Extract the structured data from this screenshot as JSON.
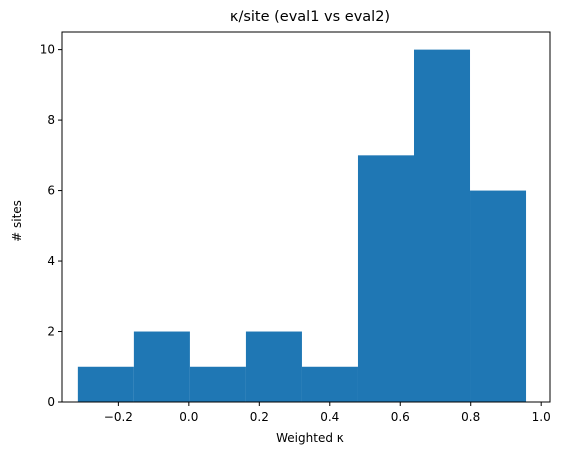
{
  "chart_data": {
    "type": "bar",
    "title": "κ/site (eval1 vs eval2)",
    "xlabel": "Weighted κ",
    "ylabel": "# sites",
    "xlim": [
      -0.36,
      1.025
    ],
    "ylim": [
      0,
      10.5
    ],
    "x_ticks": [
      -0.2,
      0.0,
      0.2,
      0.4,
      0.6,
      0.8,
      1.0
    ],
    "x_tick_labels": [
      "−0.2",
      "0.0",
      "0.2",
      "0.4",
      "0.6",
      "0.8",
      "1.0"
    ],
    "y_ticks": [
      0,
      2,
      4,
      6,
      8,
      10
    ],
    "y_tick_labels": [
      "0",
      "2",
      "4",
      "6",
      "8",
      "10"
    ],
    "bin_edges": [
      -0.315,
      -0.156,
      0.003,
      0.162,
      0.321,
      0.48,
      0.639,
      0.798,
      0.957
    ],
    "values": [
      1,
      2,
      1,
      2,
      1,
      7,
      10,
      6
    ],
    "bar_color": "#1f77b4",
    "grid": false,
    "legend": "none"
  }
}
